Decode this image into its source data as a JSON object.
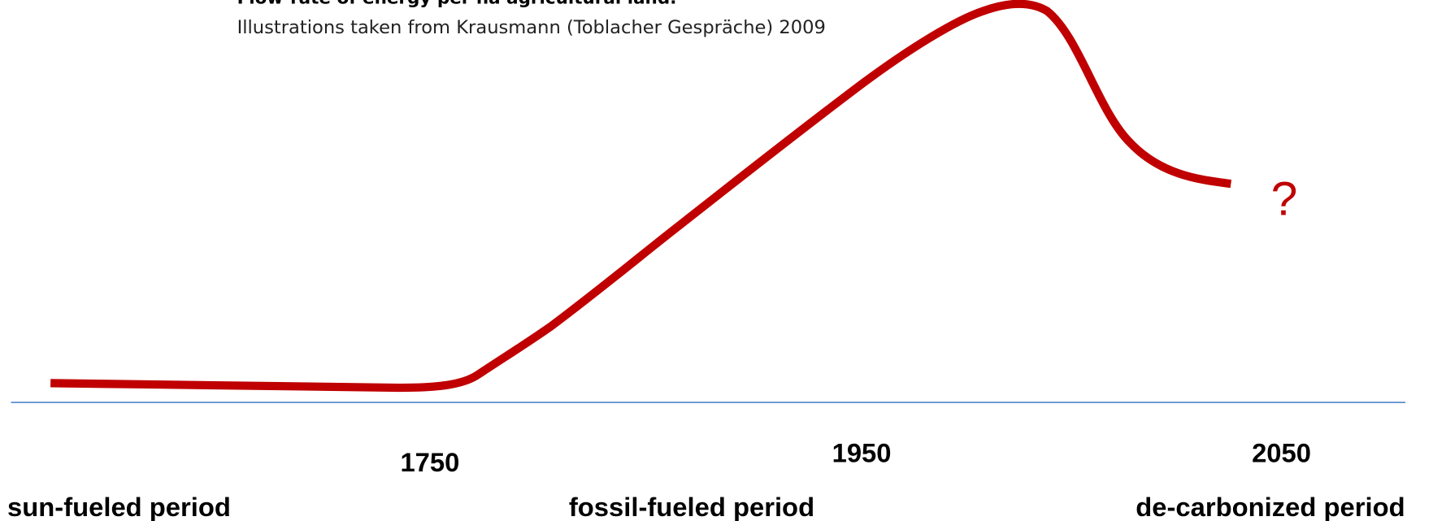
{
  "header": {
    "title": "Flow-rate of energy per ha agricultural land.",
    "source": "Illustrations taken from Krausmann (Toblacher Gespräche) 2009"
  },
  "timeline": {
    "years": [
      "1750",
      "1950",
      "2050"
    ],
    "periods": [
      "sun-fueled period",
      "fossil-fueled period",
      "de-carbonized period"
    ]
  },
  "annotation": "?"
}
